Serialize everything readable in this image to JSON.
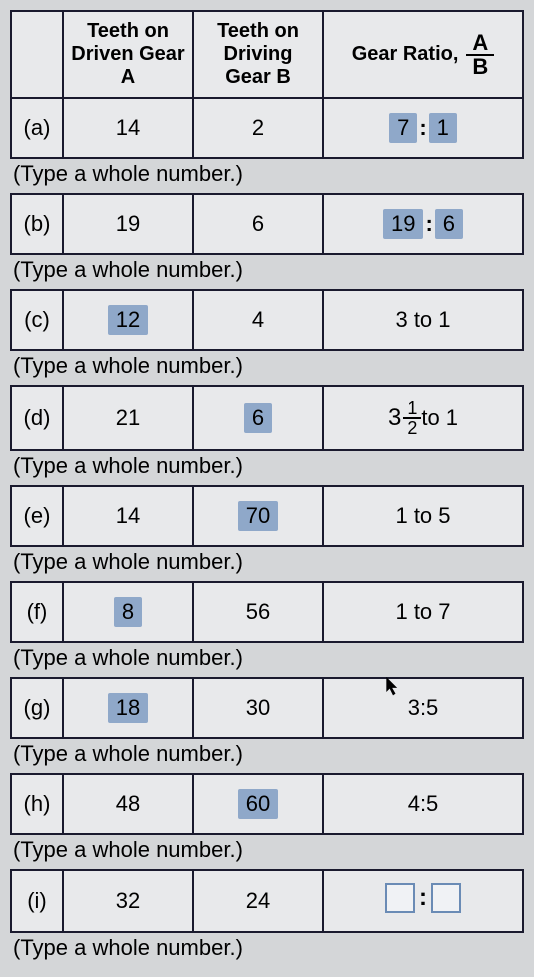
{
  "headers": {
    "colA": "Teeth on Driven Gear A",
    "colB": "Teeth on Driving Gear B",
    "colC_text": "Gear Ratio,",
    "frac_num": "A",
    "frac_den": "B"
  },
  "hint": "(Type a whole number.)",
  "rows": [
    {
      "label": "(a)",
      "A": {
        "value": "14",
        "hl": false
      },
      "B": {
        "value": "2",
        "hl": false
      },
      "ratio": {
        "type": "hl_colon",
        "left": "7",
        "right": "1"
      }
    },
    {
      "label": "(b)",
      "A": {
        "value": "19",
        "hl": false
      },
      "B": {
        "value": "6",
        "hl": false
      },
      "ratio": {
        "type": "hl_colon",
        "left": "19",
        "right": "6"
      }
    },
    {
      "label": "(c)",
      "A": {
        "value": "12",
        "hl": true
      },
      "B": {
        "value": "4",
        "hl": false
      },
      "ratio": {
        "type": "text",
        "text": "3 to 1"
      }
    },
    {
      "label": "(d)",
      "A": {
        "value": "21",
        "hl": false
      },
      "B": {
        "value": "6",
        "hl": true
      },
      "ratio": {
        "type": "mixed_to",
        "whole": "3",
        "num": "1",
        "den": "2",
        "suffix": " to 1"
      }
    },
    {
      "label": "(e)",
      "A": {
        "value": "14",
        "hl": false
      },
      "B": {
        "value": "70",
        "hl": true
      },
      "ratio": {
        "type": "text",
        "text": "1 to 5"
      }
    },
    {
      "label": "(f)",
      "A": {
        "value": "8",
        "hl": true
      },
      "B": {
        "value": "56",
        "hl": false
      },
      "ratio": {
        "type": "text",
        "text": "1 to 7"
      }
    },
    {
      "label": "(g)",
      "A": {
        "value": "18",
        "hl": true
      },
      "B": {
        "value": "30",
        "hl": false
      },
      "ratio": {
        "type": "text_cursor",
        "text": "3:5"
      }
    },
    {
      "label": "(h)",
      "A": {
        "value": "48",
        "hl": false
      },
      "B": {
        "value": "60",
        "hl": true
      },
      "ratio": {
        "type": "text",
        "text": "4:5"
      }
    },
    {
      "label": "(i)",
      "A": {
        "value": "32",
        "hl": false
      },
      "B": {
        "value": "24",
        "hl": false
      },
      "ratio": {
        "type": "input_colon"
      }
    }
  ],
  "colors": {
    "highlight_bg": "#8fa8c9",
    "border": "#1a1a2e",
    "cell_bg": "#e8e9eb",
    "page_bg": "#d4d6d8",
    "input_border": "#6a8bb5"
  }
}
